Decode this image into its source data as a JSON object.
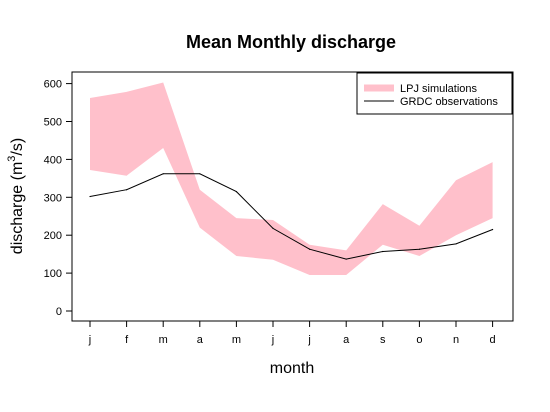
{
  "chart_data": {
    "type": "area",
    "title": "Mean Monthly discharge",
    "xlabel": "month",
    "ylabel": {
      "main": "discharge (m",
      "sup": "3",
      "tail": "/s)"
    },
    "categories": [
      "j",
      "f",
      "m",
      "a",
      "m",
      "j",
      "j",
      "a",
      "s",
      "o",
      "n",
      "d"
    ],
    "ylim": [
      0,
      620
    ],
    "yticks": [
      0,
      100,
      200,
      300,
      400,
      500,
      600
    ],
    "grid": false,
    "legend_position": "top-right",
    "legend": [
      {
        "label": "LPJ simulations",
        "color": "#ffc0cb",
        "style": "band"
      },
      {
        "label": "GRDC observations",
        "color": "#000000",
        "style": "line"
      }
    ],
    "series": [
      {
        "name": "LPJ simulations",
        "type": "band",
        "color": "#ffc0cb",
        "upper": [
          562,
          578,
          603,
          320,
          245,
          240,
          175,
          160,
          282,
          225,
          345,
          393
        ],
        "lower": [
          372,
          357,
          430,
          220,
          145,
          135,
          95,
          95,
          175,
          145,
          200,
          245
        ]
      },
      {
        "name": "GRDC observations",
        "type": "line",
        "color": "#000000",
        "values": [
          302,
          320,
          362,
          362,
          315,
          218,
          163,
          137,
          157,
          163,
          177,
          215
        ]
      }
    ]
  }
}
